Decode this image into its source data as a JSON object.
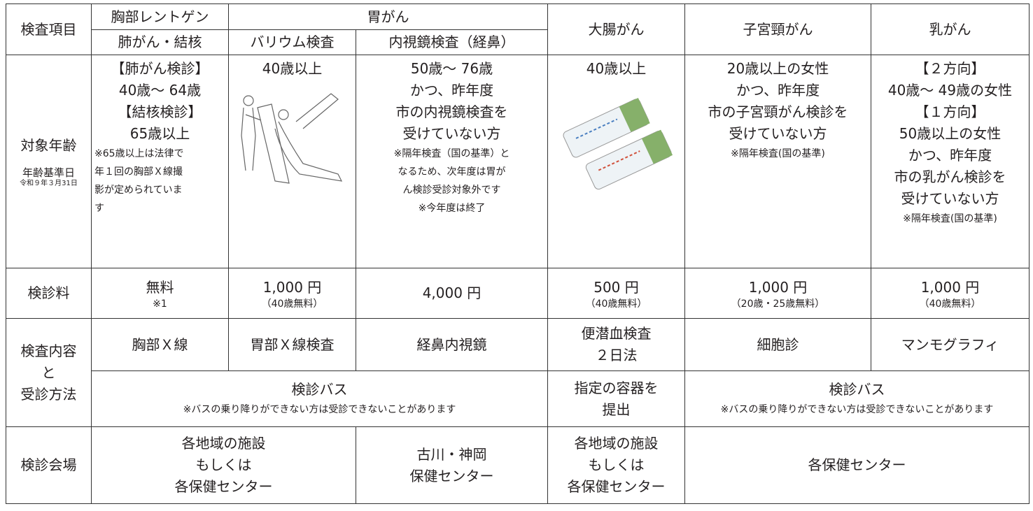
{
  "header": {
    "label": "検査項目",
    "chest": "胸部レントゲン",
    "stomach": "胃がん",
    "colon": "大腸がん",
    "cervical": "子宮頸がん",
    "breast": "乳がん",
    "sub": [
      "肺がん・結核",
      "バリウム検査",
      "内視鏡検査（経鼻）"
    ]
  },
  "age": {
    "label": {
      "main": [
        "対象年齢"
      ],
      "sub": [
        "年齢基準日"
      ],
      "date": [
        "令和９年３月31日"
      ]
    },
    "chest": {
      "main": [
        "【肺がん検診】",
        "40歳～ 64歳",
        "【結核検診】",
        "65歳以上"
      ],
      "note": [
        "※65歳以上は法律で",
        "年１回の胸部Ｘ線撮",
        "影が定められていま",
        "す"
      ]
    },
    "barium": {
      "main": [
        "40歳以上"
      ]
    },
    "endo": {
      "main": [
        "50歳～ 76歳",
        "かつ、昨年度",
        "市の内視鏡検査を",
        "受けていない方"
      ],
      "note": [
        "※隔年検査（国の基準）と",
        "なるため、次年度は胃が",
        "ん検診受診対象外です",
        "※今年度は終了"
      ]
    },
    "colon": {
      "main": [
        "40歳以上"
      ]
    },
    "cervical": {
      "main": [
        "20歳以上の女性",
        "かつ、昨年度",
        "市の子宮頸がん検診を",
        "受けていない方"
      ],
      "note": [
        "※隔年検査(国の基準)"
      ]
    },
    "breast": {
      "main": [
        "【２方向】",
        "40歳～ 49歳の女性",
        "【１方向】",
        "50歳以上の女性",
        "かつ、昨年度",
        "市の乳がん検診を",
        "受けていない方"
      ],
      "note": [
        "※隔年検査(国の基準)"
      ]
    }
  },
  "fee": {
    "label": {
      "main": [
        "検診料"
      ]
    },
    "chest": {
      "main": [
        "無料"
      ],
      "note": [
        "※1"
      ]
    },
    "barium": {
      "main": [
        "1,000 円"
      ],
      "note": [
        "（40歳無料）"
      ]
    },
    "endo": {
      "main": [
        "4,000 円"
      ]
    },
    "colon": {
      "main": [
        "500 円"
      ],
      "note": [
        "（40歳無料）"
      ]
    },
    "cervical": {
      "main": [
        "1,000 円"
      ],
      "note": [
        "（20歳・25歳無料）"
      ]
    },
    "breast": {
      "main": [
        "1,000 円"
      ],
      "note": [
        "（40歳無料）"
      ]
    }
  },
  "content": {
    "label": {
      "main": [
        "検査内容",
        "と",
        "受診方法"
      ]
    },
    "chest": {
      "main": [
        "胸部Ｘ線"
      ]
    },
    "barium": {
      "main": [
        "胃部Ｘ線検査"
      ]
    },
    "endo": {
      "main": [
        "経鼻内視鏡"
      ]
    },
    "colon": {
      "main": [
        "便潜血検査",
        "２日法"
      ]
    },
    "cervical": {
      "main": [
        "細胞診"
      ]
    },
    "breast": {
      "main": [
        "マンモグラフィ"
      ]
    },
    "bus1": {
      "main": [
        "検診バス"
      ],
      "note": [
        "※バスの乗り降りができない方は受診できないことがあります"
      ]
    },
    "colon2": {
      "main": [
        "指定の容器を",
        "提出"
      ]
    },
    "bus2": {
      "main": [
        "検診バス"
      ],
      "note": [
        "※バスの乗り降りができない方は受診できないことがあります"
      ]
    }
  },
  "venue": {
    "label": {
      "main": [
        "検診会場"
      ]
    },
    "chest_stomach": {
      "main": [
        "各地域の施設",
        "もしくは",
        "各保健センター"
      ]
    },
    "endo": {
      "main": [
        "古川・神岡",
        "保健センター"
      ]
    },
    "colon": {
      "main": [
        "各地域の施設",
        "もしくは",
        "各保健センター"
      ]
    },
    "women": {
      "main": [
        "各保健センター"
      ]
    }
  }
}
